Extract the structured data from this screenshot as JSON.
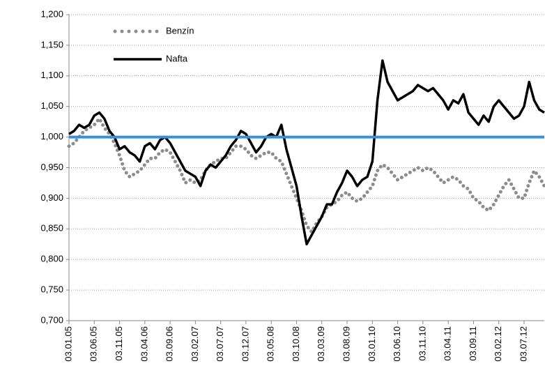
{
  "chart_data": {
    "type": "line",
    "categories": [
      "03.01.05",
      null,
      null,
      null,
      null,
      "03.06.05",
      null,
      null,
      null,
      null,
      "03.11.05",
      null,
      null,
      null,
      null,
      "03.04.06",
      null,
      null,
      null,
      null,
      "03.09.06",
      null,
      null,
      null,
      null,
      "03.02.07",
      null,
      null,
      null,
      null,
      "03.07.07",
      null,
      null,
      null,
      null,
      "03.12.07",
      null,
      null,
      null,
      null,
      "03.05.08",
      null,
      null,
      null,
      null,
      "03.10.08",
      null,
      null,
      null,
      null,
      "03.03.09",
      null,
      null,
      null,
      null,
      "03.08.09",
      null,
      null,
      null,
      null,
      "03.01.10",
      null,
      null,
      null,
      null,
      "03.06.10",
      null,
      null,
      null,
      null,
      "03.11.10",
      null,
      null,
      null,
      null,
      "03.04.11",
      null,
      null,
      null,
      null,
      "03.09.11",
      null,
      null,
      null,
      null,
      "03.02.12",
      null,
      null,
      null,
      null,
      "03.07.12",
      null,
      null,
      null,
      null
    ],
    "series": [
      {
        "name": "Benzín",
        "color": "#8c8c8c",
        "style": "dotted",
        "values": [
          0.985,
          0.99,
          1.0,
          1.01,
          1.015,
          1.02,
          1.03,
          1.015,
          1.005,
          0.99,
          0.97,
          0.945,
          0.935,
          0.94,
          0.945,
          0.955,
          0.965,
          0.965,
          0.975,
          0.98,
          0.975,
          0.96,
          0.945,
          0.925,
          0.93,
          0.925,
          0.93,
          0.945,
          0.955,
          0.96,
          0.965,
          0.965,
          0.975,
          0.985,
          0.985,
          0.98,
          0.97,
          0.965,
          0.97,
          0.975,
          0.975,
          0.965,
          0.96,
          0.94,
          0.92,
          0.9,
          0.88,
          0.855,
          0.845,
          0.86,
          0.87,
          0.885,
          0.89,
          0.895,
          0.905,
          0.91,
          0.9,
          0.895,
          0.9,
          0.91,
          0.92,
          0.945,
          0.955,
          0.95,
          0.94,
          0.93,
          0.935,
          0.94,
          0.945,
          0.95,
          0.945,
          0.95,
          0.945,
          0.935,
          0.925,
          0.93,
          0.935,
          0.93,
          0.92,
          0.915,
          0.9,
          0.895,
          0.885,
          0.88,
          0.89,
          0.905,
          0.92,
          0.93,
          0.915,
          0.9,
          0.9,
          0.925,
          0.945,
          0.935,
          0.92
        ]
      },
      {
        "name": "Nafta",
        "color": "#000000",
        "style": "solid",
        "values": [
          1.005,
          1.01,
          1.02,
          1.015,
          1.02,
          1.035,
          1.04,
          1.03,
          1.01,
          1.0,
          0.98,
          0.985,
          0.975,
          0.97,
          0.96,
          0.985,
          0.99,
          0.98,
          0.995,
          1.0,
          0.99,
          0.975,
          0.96,
          0.945,
          0.94,
          0.935,
          0.92,
          0.945,
          0.955,
          0.95,
          0.96,
          0.97,
          0.985,
          0.995,
          1.01,
          1.005,
          0.99,
          0.975,
          0.985,
          1.0,
          1.005,
          1.0,
          1.02,
          0.98,
          0.95,
          0.92,
          0.87,
          0.825,
          0.84,
          0.855,
          0.87,
          0.89,
          0.89,
          0.91,
          0.925,
          0.945,
          0.935,
          0.92,
          0.93,
          0.935,
          0.96,
          1.06,
          1.125,
          1.09,
          1.075,
          1.06,
          1.065,
          1.07,
          1.075,
          1.085,
          1.08,
          1.075,
          1.08,
          1.07,
          1.06,
          1.045,
          1.06,
          1.055,
          1.07,
          1.04,
          1.03,
          1.02,
          1.035,
          1.025,
          1.05,
          1.06,
          1.05,
          1.04,
          1.03,
          1.035,
          1.05,
          1.09,
          1.06,
          1.045,
          1.04
        ]
      }
    ],
    "reference_line": {
      "value": 1,
      "color": "#3a8fd6"
    },
    "ylim": [
      0.7,
      1.2
    ],
    "yticks": [
      {
        "value": 0.7,
        "label": "0,700"
      },
      {
        "value": 0.75,
        "label": "0,750"
      },
      {
        "value": 0.8,
        "label": "0,800"
      },
      {
        "value": 0.85,
        "label": "0,850"
      },
      {
        "value": 0.9,
        "label": "0,900"
      },
      {
        "value": 0.95,
        "label": "0,950"
      },
      {
        "value": 1.0,
        "label": "1,000"
      },
      {
        "value": 1.05,
        "label": "1,050"
      },
      {
        "value": 1.1,
        "label": "1,100"
      },
      {
        "value": 1.15,
        "label": "1,150"
      },
      {
        "value": 1.2,
        "label": "1,200"
      }
    ],
    "grid": true,
    "legend": "top-left"
  }
}
